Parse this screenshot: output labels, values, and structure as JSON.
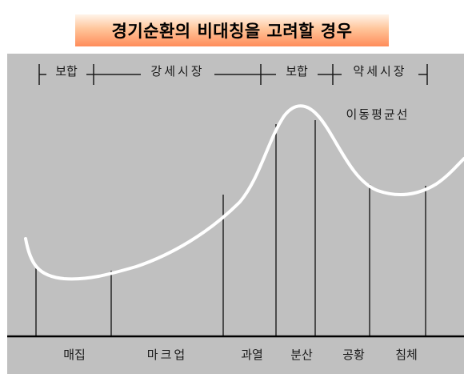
{
  "title": "경기순환의 비대칭을 고려할 경우",
  "phases": [
    "보합",
    "강세시장",
    "보합",
    "약세시장"
  ],
  "curve_label": "이동평균선",
  "bottom_labels": [
    "매집",
    "마크업",
    "과열",
    "분산",
    "공황",
    "침체"
  ],
  "colors": {
    "panel": "#c0c0c0",
    "curve": "#ffffff",
    "lines": "#000000",
    "title_gradient_top": "#fff4ea",
    "title_gradient_bottom": "#ff8c5a"
  }
}
